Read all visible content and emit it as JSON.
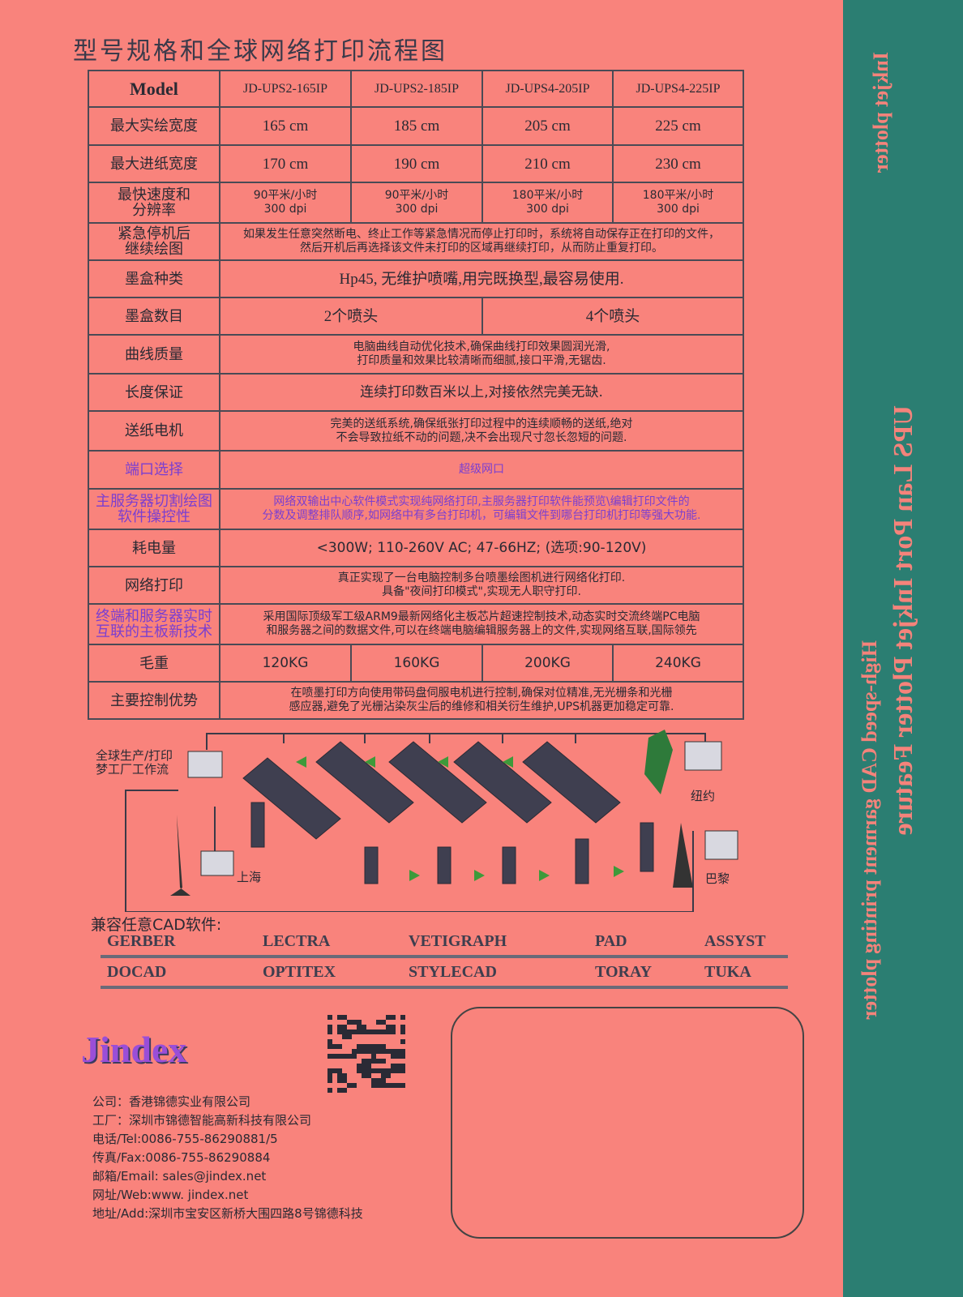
{
  "header": {
    "title": "型号规格和全球网络打印流程图"
  },
  "side": {
    "top": "Inkjet plotter",
    "main": "UPS Lan Port Inkjet Plotter Feature",
    "sub": "High-speed CAD garment printing plotter"
  },
  "table": {
    "header": [
      "Model",
      "JD-UPS2-165IP",
      "JD-UPS2-185IP",
      "JD-UPS4-205IP",
      "JD-UPS4-225IP"
    ],
    "rows": [
      [
        "最大实绘宽度",
        "165  cm",
        "185  cm",
        "205  cm",
        "225  cm"
      ],
      [
        "最大进纸宽度",
        "170  cm",
        "190  cm",
        "210  cm",
        "230  cm"
      ],
      [
        "最快速度和\n分辨率",
        "90平米/小时\n300 dpi",
        "90平米/小时\n300 dpi",
        "180平米/小时\n300 dpi",
        "180平米/小时\n300 dpi"
      ],
      [
        "紧急停机后\n继续绘图",
        "如果发生任意突然断电、终止工作等紧急情况而停止打印时，系统将自动保存正在打印的文件，\n然后开机后再选择该文件未打印的区域再继续打印，从而防止重复打印。"
      ],
      [
        "墨盒种类",
        "Hp45, 无维护喷嘴,用完既换型,最容易使用."
      ],
      [
        "墨盒数目",
        "2个喷头",
        "4个喷头"
      ],
      [
        "曲线质量",
        "电脑曲线自动优化技术,确保曲线打印效果圆润光滑,\n打印质量和效果比较清晰而细腻,接口平滑,无锯齿."
      ],
      [
        "长度保证",
        "连续打印数百米以上,对接依然完美无缺."
      ],
      [
        "送纸电机",
        "完美的送纸系统,确保纸张打印过程中的连续顺畅的送纸,绝对\n不会导致拉纸不动的问题,决不会出现尺寸忽长忽短的问题."
      ],
      [
        "端口选择",
        "超级网口"
      ],
      [
        "主服务器切割绘图\n软件操控性",
        "网络双输出中心软件模式实现纯网络打印,主服务器打印软件能预览\\编辑打印文件的\n分数及调整排队顺序,如网络中有多台打印机，可编辑文件到哪台打印机打印等强大功能."
      ],
      [
        "耗电量",
        "<300W; 110-260V AC;  47-66HZ; (选项:90-120V)"
      ],
      [
        "网络打印",
        "真正实现了一台电脑控制多台喷墨绘图机进行网络化打印.\n具备\"夜间打印模式\",实现无人职守打印."
      ],
      [
        "终端和服务器实时\n互联的主板新技术",
        "采用国际顶级军工级ARM9最新网络化主板芯片超速控制技术,动态实时交流终端PC电脑\n和服务器之间的数据文件,可以在终端电脑编辑服务器上的文件,实现网络互联,国际领先"
      ],
      [
        "毛重",
        "120KG",
        "160KG",
        "200KG",
        "240KG"
      ],
      [
        "主要控制优势",
        "在喷墨打印方向使用带码盘伺服电机进行控制,确保对位精准,无光栅条和光栅\n感应器,避免了光栅沾染灰尘后的维修和相关衍生维护,UPS机器更加稳定可靠."
      ]
    ]
  },
  "diagram": {
    "workflow": "全球生产/打印\n梦工厂工作流",
    "newyork": "纽约",
    "shanghai": "上海",
    "paris": "巴黎"
  },
  "cad": {
    "title": "兼容任意CAD软件:",
    "rows": [
      [
        "GERBER",
        "LECTRA",
        "VETIGRAPH",
        "PAD",
        "ASSYST"
      ],
      [
        "DOCAD",
        "OPTITEX",
        "STYLECAD",
        "TORAY",
        "TUKA"
      ]
    ]
  },
  "footer": {
    "logo": "Jindex",
    "contacts": [
      "公司：香港锦德实业有限公司",
      "工厂：深圳市锦德智能高新科技有限公司",
      "电话/Tel:0086-755-86290881/5",
      "传真/Fax:0086-755-86290884",
      "邮箱/Email: sales@jindex.net",
      "网址/Web:www. jindex.net",
      "地址/Add:深圳市宝安区新桥大围四路8号锦德科技"
    ]
  }
}
